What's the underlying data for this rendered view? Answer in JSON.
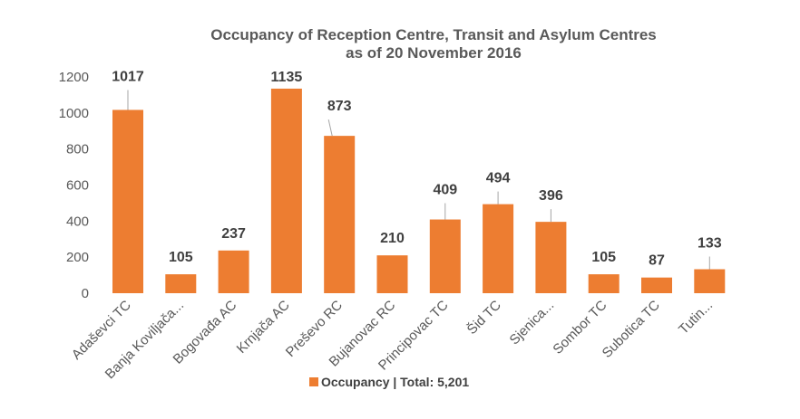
{
  "chart_data": {
    "type": "bar",
    "title": "Occupancy of Reception Centre, Transit and Asylum Centres",
    "subtitle": "as of 20 November 2016",
    "categories": [
      "Adaševci TC",
      "Banja Koviljača...",
      "Bogovađa AC",
      "Krnjača AC",
      "Preševo RC",
      "Bujanovac RC",
      "Principovac TC",
      "Šid TC",
      "Sjenica...",
      "Sombor TC",
      "Subotica TC",
      "Tutin..."
    ],
    "series": [
      {
        "name": "Occupancy | Total: 5,201",
        "values": [
          1017,
          105,
          237,
          1135,
          873,
          210,
          409,
          494,
          396,
          105,
          87,
          133
        ]
      }
    ],
    "data_labels": [
      "1017",
      "105",
      "237",
      "1135",
      "873",
      "210",
      "409",
      "494",
      "396",
      "105",
      "87",
      "133"
    ],
    "yticks": [
      "0",
      "200",
      "400",
      "600",
      "800",
      "1000",
      "1200"
    ],
    "ylim": [
      0,
      1200
    ],
    "grid": false,
    "legend_position": "bottom",
    "bar_color": "#ED7D31"
  }
}
